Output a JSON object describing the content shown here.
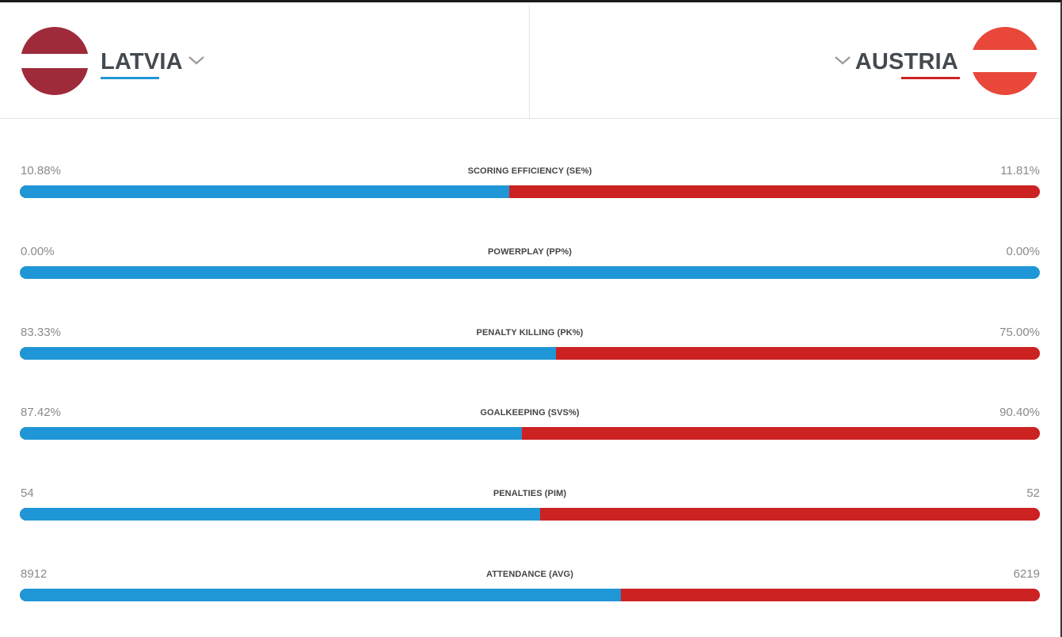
{
  "teams": {
    "left": {
      "name": "LATVIA",
      "accent": "#1f96d6",
      "flag": {
        "icon": "latvia-flag-icon",
        "colors": [
          "#9e2a3a",
          "#ffffff",
          "#9e2a3a"
        ]
      }
    },
    "right": {
      "name": "AUSTRIA",
      "accent": "#cc2222",
      "flag": {
        "icon": "austria-flag-icon",
        "colors": [
          "#e8473a",
          "#ffffff",
          "#e8473a"
        ]
      }
    }
  },
  "icons": {
    "dropdown": "chevron-down-icon"
  },
  "colors": {
    "left_bar": "#1f96d6",
    "right_bar": "#cc2222"
  },
  "stats": [
    {
      "label": "SCORING EFFICIENCY (SE%)",
      "left": "10.88%",
      "right": "11.81%",
      "left_share": 0.48
    },
    {
      "label": "POWERPLAY (PP%)",
      "left": "0.00%",
      "right": "0.00%",
      "left_share": 1.0
    },
    {
      "label": "PENALTY KILLING (PK%)",
      "left": "83.33%",
      "right": "75.00%",
      "left_share": 0.526
    },
    {
      "label": "GOALKEEPING (SVS%)",
      "left": "87.42%",
      "right": "90.40%",
      "left_share": 0.492
    },
    {
      "label": "PENALTIES (PIM)",
      "left": "54",
      "right": "52",
      "left_share": 0.51
    },
    {
      "label": "ATTENDANCE (AVG)",
      "left": "8912",
      "right": "6219",
      "left_share": 0.589
    }
  ]
}
